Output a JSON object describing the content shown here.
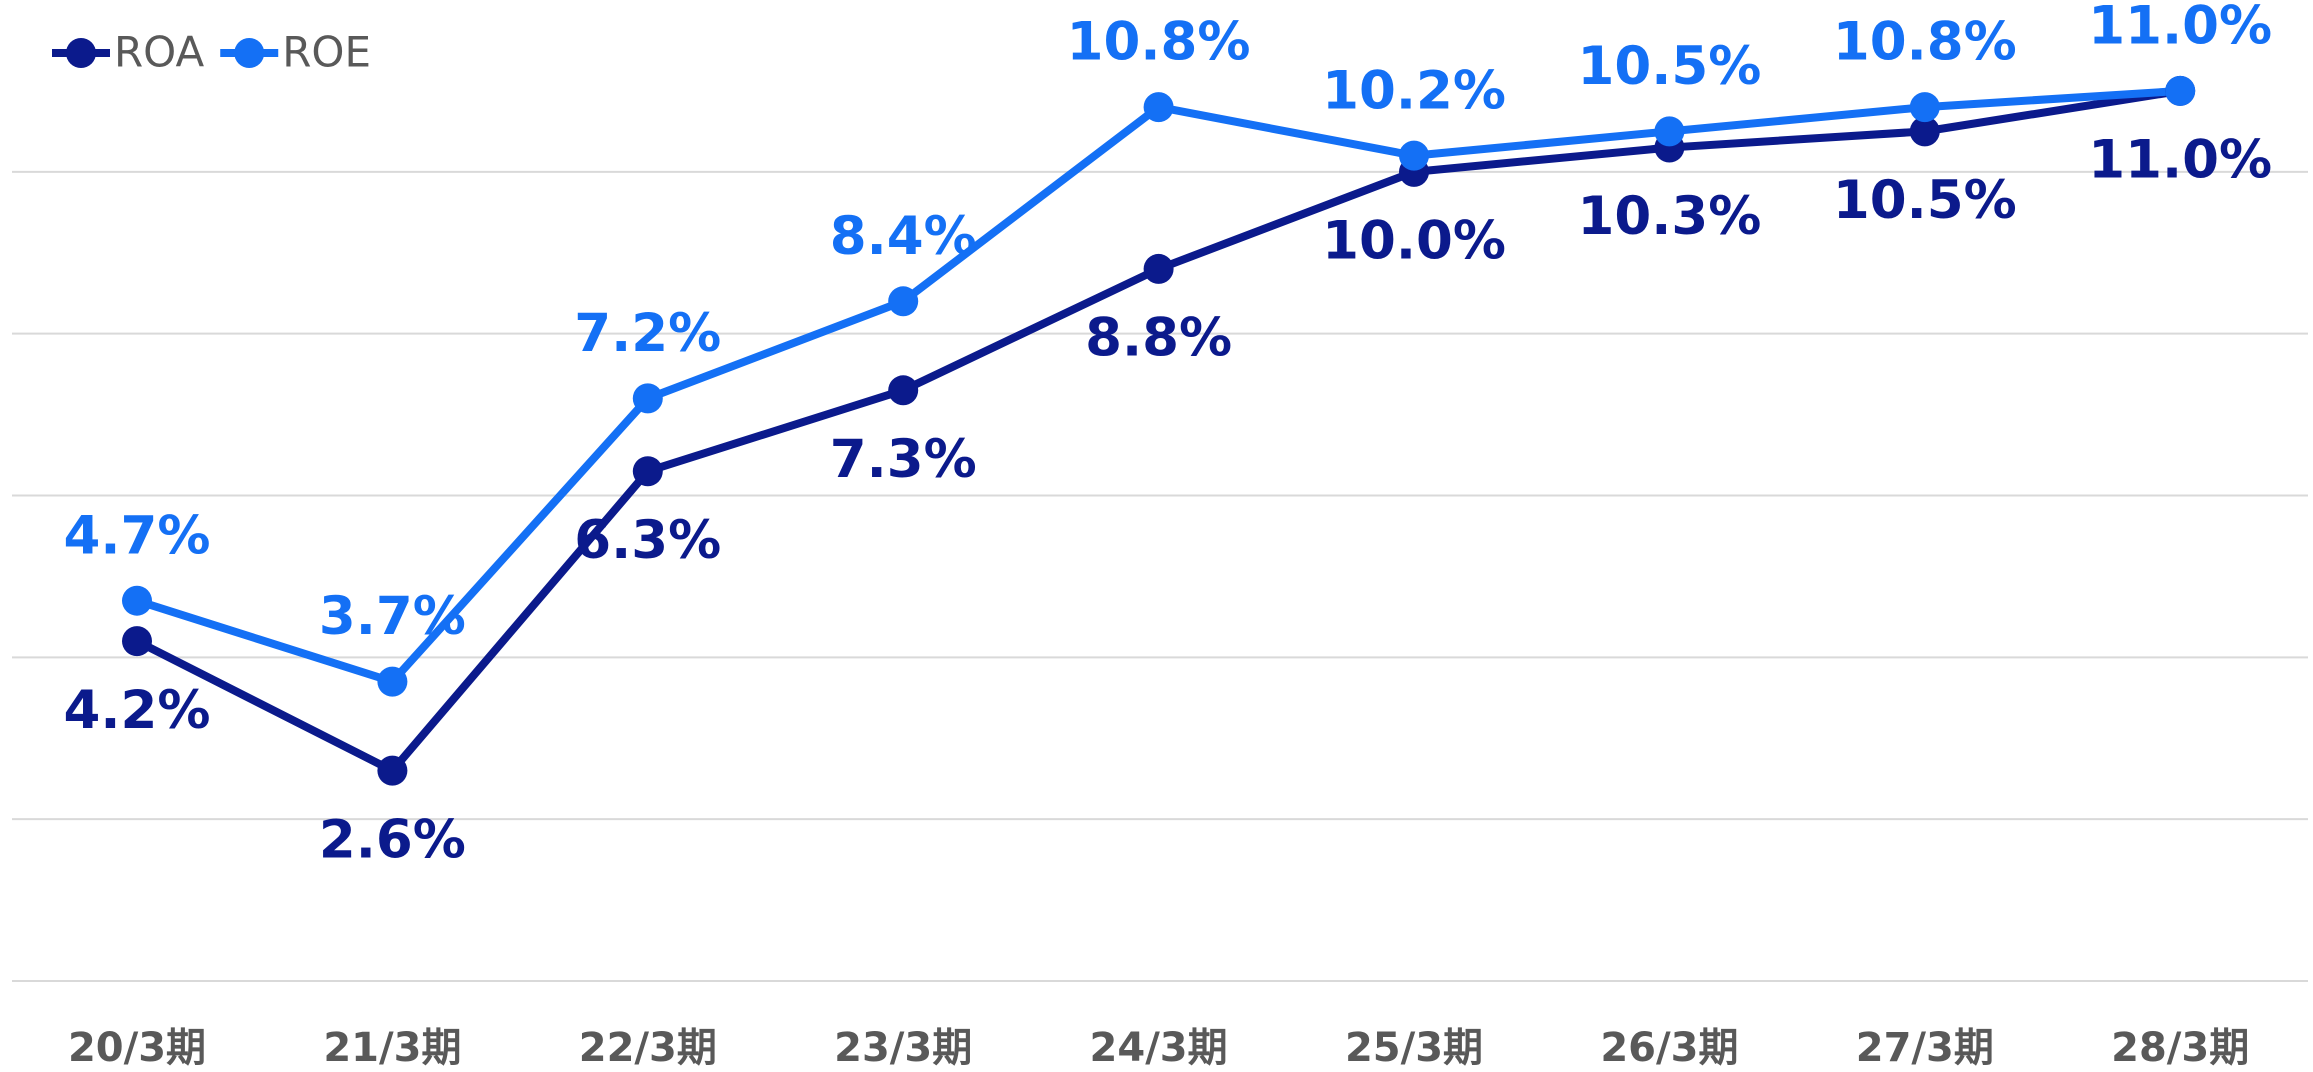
{
  "chart_data": {
    "type": "line",
    "categories": [
      "20/3期",
      "21/3期",
      "22/3期",
      "23/3期",
      "24/3期",
      "25/3期",
      "26/3期",
      "27/3期",
      "28/3期"
    ],
    "series": [
      {
        "name": "ROA",
        "color": "#0b1a8c",
        "values": [
          4.2,
          2.6,
          6.3,
          7.3,
          8.8,
          10.0,
          10.3,
          10.5,
          11.0
        ],
        "value_labels": [
          "4.2%",
          "2.6%",
          "6.3%",
          "7.3%",
          "8.8%",
          "10.0%",
          "10.3%",
          "10.5%",
          "11.0%"
        ]
      },
      {
        "name": "ROE",
        "color": "#1470f5",
        "values": [
          4.7,
          3.7,
          7.2,
          8.4,
          10.8,
          10.2,
          10.5,
          10.8,
          11.0
        ],
        "value_labels": [
          "4.7%",
          "3.7%",
          "7.2%",
          "8.4%",
          "10.8%",
          "10.2%",
          "10.5%",
          "10.8%",
          "11.0%"
        ]
      }
    ],
    "ylim": [
      0,
      12
    ],
    "yticks": [
      0,
      2,
      4,
      6,
      8,
      10
    ],
    "grid": true,
    "legend": "top-left"
  }
}
